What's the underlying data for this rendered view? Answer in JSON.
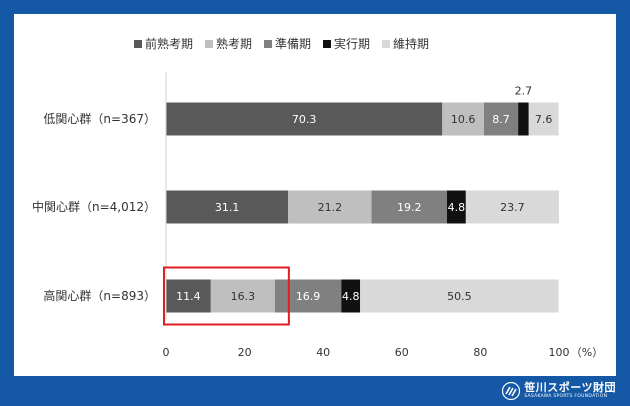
{
  "chart_data": {
    "type": "bar",
    "orientation": "horizontal",
    "stacked": true,
    "categories": [
      "低関心群（n=367）",
      "中関心群（n=4,012）",
      "高関心群（n=893）"
    ],
    "series": [
      {
        "name": "前熟考期",
        "color": "#595959",
        "values": [
          70.3,
          31.1,
          11.4
        ]
      },
      {
        "name": "熟考期",
        "color": "#bfbfbf",
        "values": [
          10.6,
          21.2,
          16.3
        ]
      },
      {
        "name": "準備期",
        "color": "#808080",
        "values": [
          8.7,
          19.2,
          16.9
        ]
      },
      {
        "name": "実行期",
        "color": "#111111",
        "values": [
          2.7,
          4.8,
          4.8
        ]
      },
      {
        "name": "維持期",
        "color": "#d9d9d9",
        "values": [
          7.6,
          23.7,
          50.5
        ]
      }
    ],
    "xlim": [
      0,
      100
    ],
    "xticks": [
      0,
      20,
      40,
      60,
      80,
      100
    ],
    "unit": "（%）",
    "legend_position": "top",
    "grid": false,
    "highlight": {
      "category_index": 2,
      "series": [
        "前熟考期",
        "熟考期"
      ],
      "color": "#e02020"
    }
  },
  "footer": {
    "logo_jp": "笹川スポーツ財団",
    "logo_en": "SASAKAWA SPORTS FOUNDATION"
  }
}
